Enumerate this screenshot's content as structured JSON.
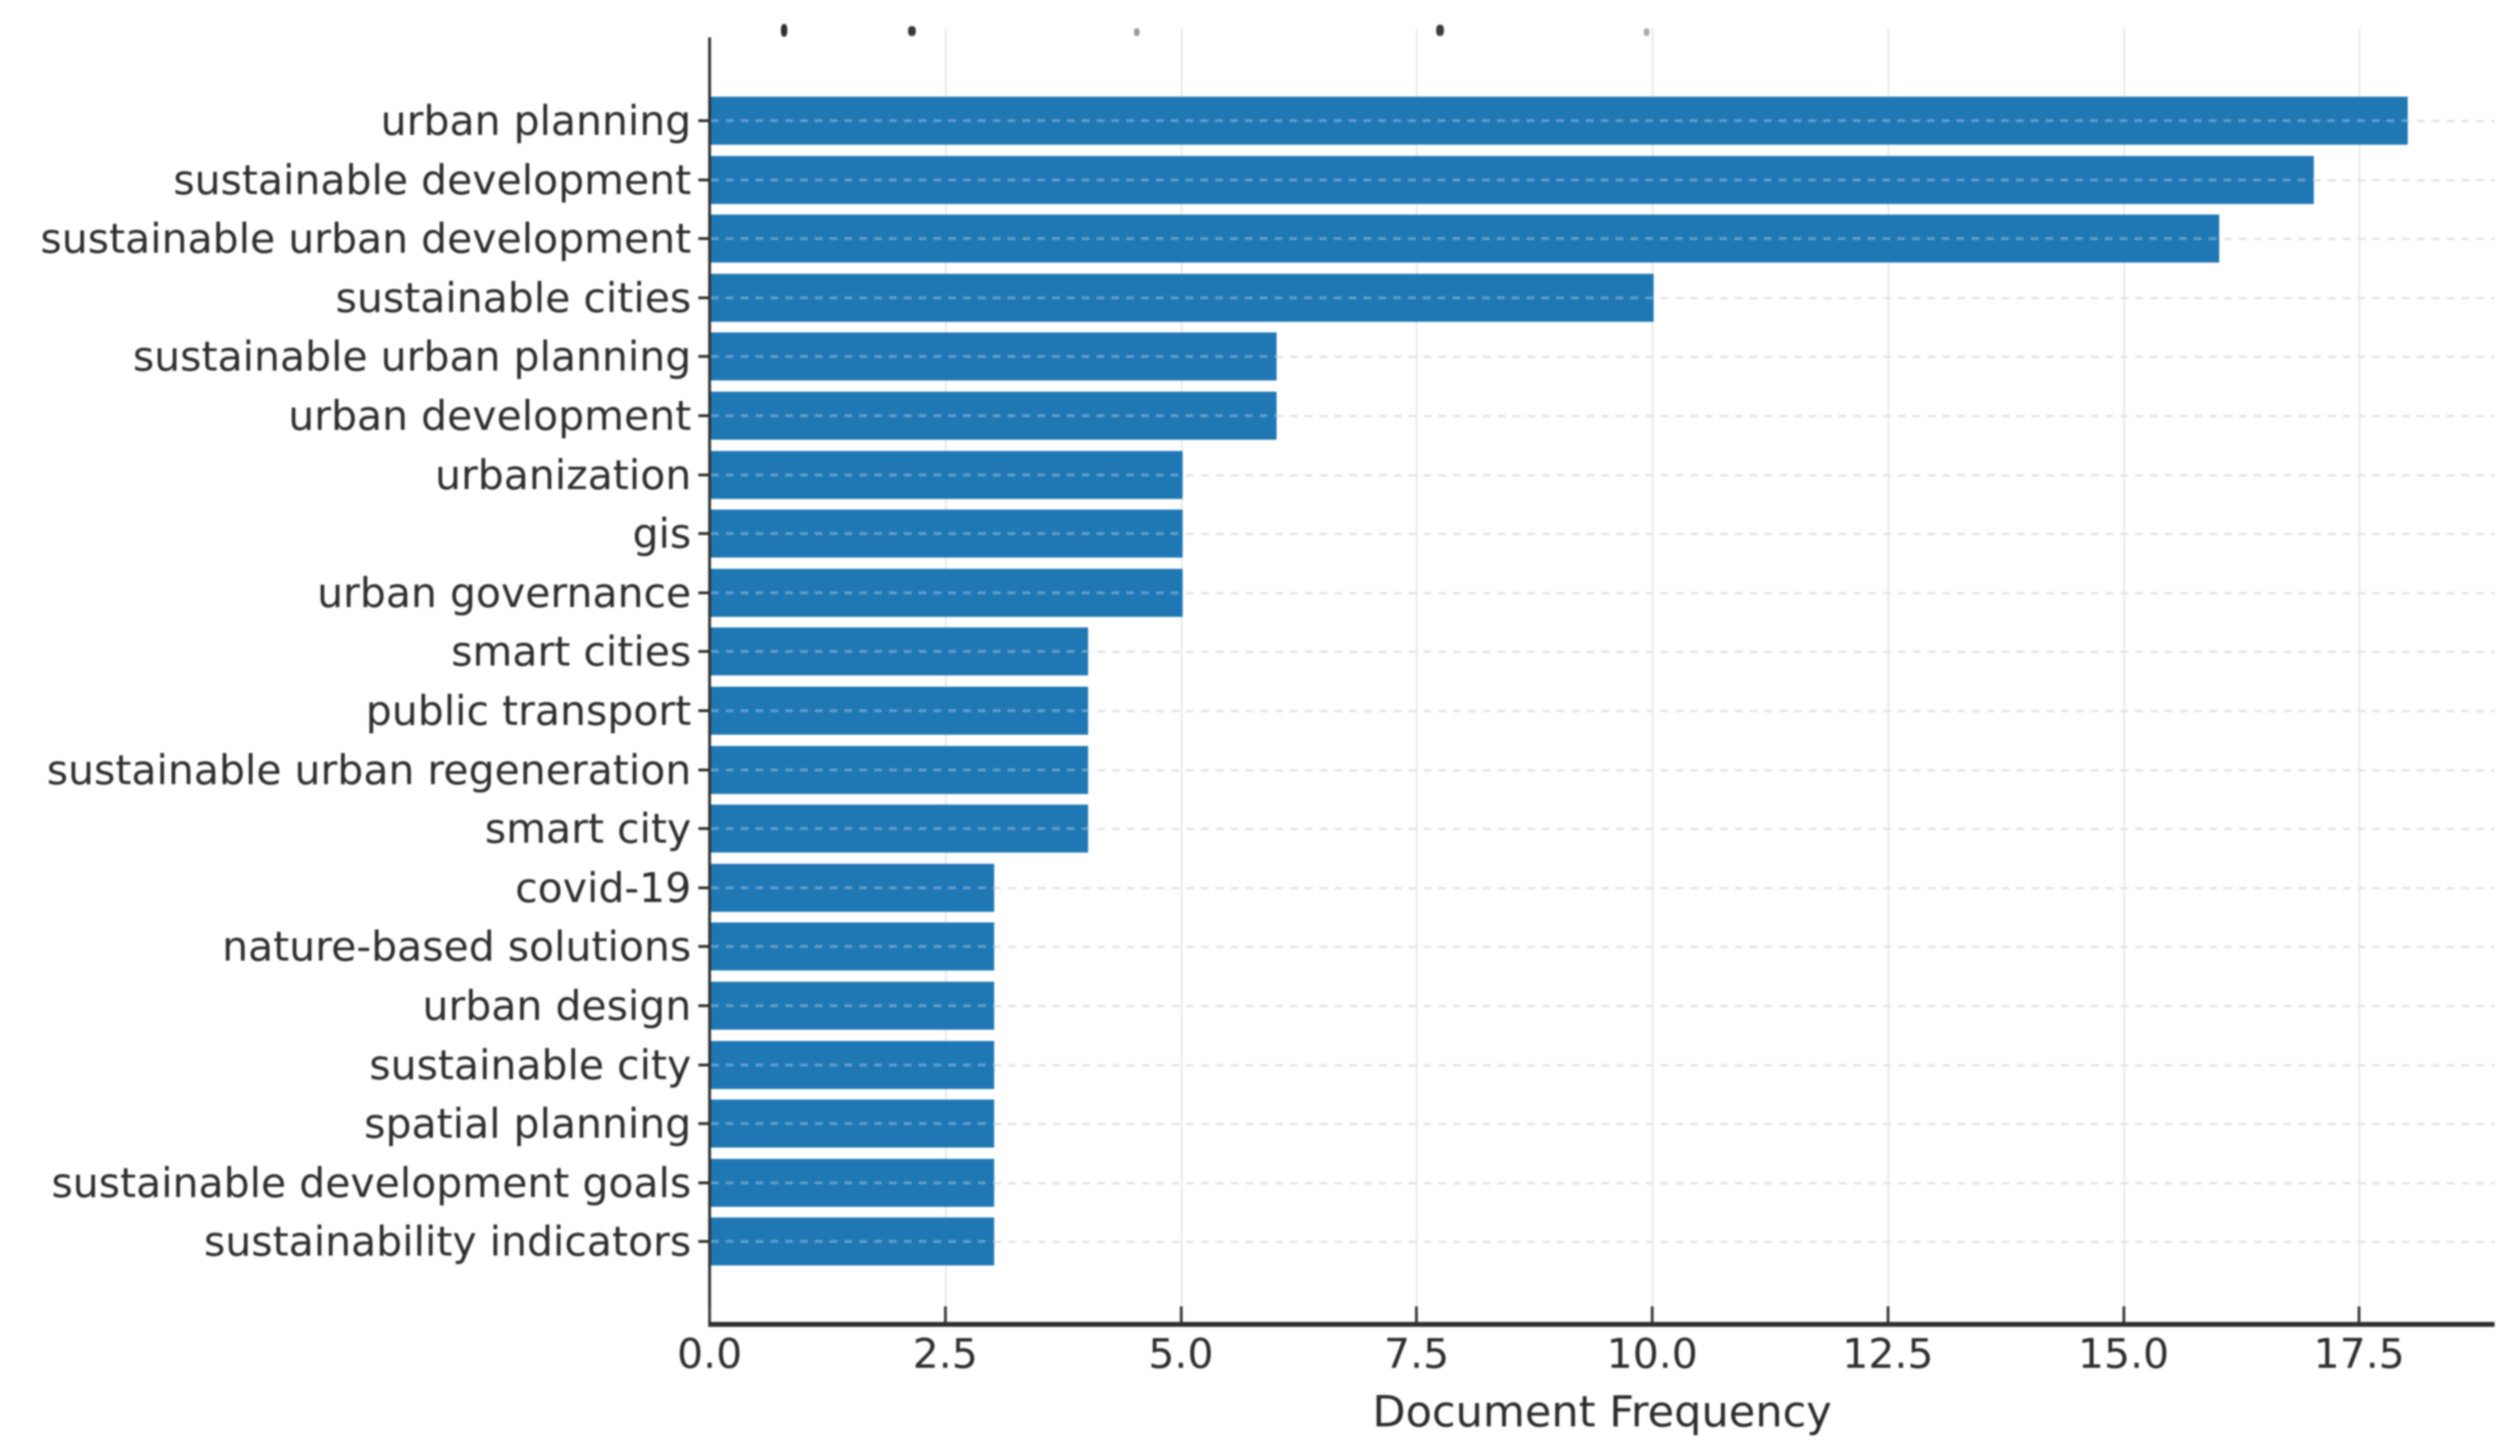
{
  "chart_data": {
    "type": "bar",
    "orientation": "horizontal",
    "title": "",
    "xlabel": "Document Frequency",
    "ylabel": "",
    "categories": [
      "urban planning",
      "sustainable development",
      "sustainable urban development",
      "sustainable cities",
      "sustainable urban planning",
      "urban development",
      "urbanization",
      "gis",
      "urban governance",
      "smart cities",
      "public transport",
      "sustainable urban regeneration",
      "smart city",
      "covid-19",
      "nature-based solutions",
      "urban design",
      "sustainable city",
      "spatial planning",
      "sustainable development goals",
      "sustainability indicators"
    ],
    "values": [
      18,
      17,
      16,
      10,
      6,
      6,
      5,
      5,
      5,
      4,
      4,
      4,
      4,
      3,
      3,
      3,
      3,
      3,
      3,
      3
    ],
    "x_tick_labels": [
      "0.0",
      "2.5",
      "5.0",
      "7.5",
      "10.0",
      "12.5",
      "15.0",
      "17.5"
    ],
    "x_tick_values": [
      0,
      2.5,
      5,
      7.5,
      10,
      12.5,
      15,
      17.5
    ],
    "xlim": [
      0,
      18.9
    ],
    "grid": true,
    "legend_position": "none",
    "bar_color": "#1f77b4"
  },
  "colors": {
    "bar": "#1f77b4",
    "grid": "#e6e6e6",
    "spine": "#2f2f2f",
    "text": "#2d2d2d",
    "background": "#ffffff"
  }
}
